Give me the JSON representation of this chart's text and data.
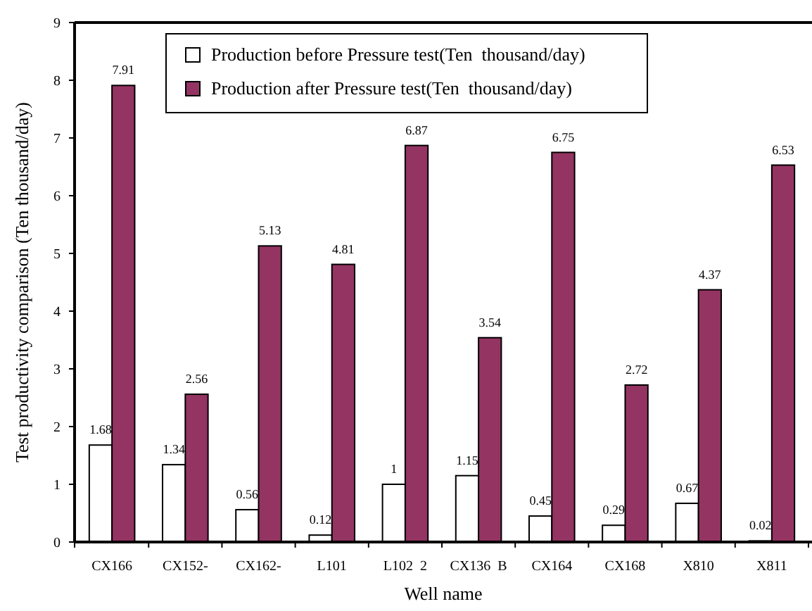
{
  "chart_data": {
    "type": "bar",
    "xlabel": "Well name",
    "ylabel": "Test productivity comparison (Ten thousand/day)",
    "categories": [
      "CX166",
      "CX152-",
      "CX162-",
      "L101",
      "L102  2",
      "CX136  B",
      "CX164",
      "CX168",
      "X810",
      "X811"
    ],
    "series": [
      {
        "name": "Production before Pressure test(Ten  thousand/day)",
        "color": "#ffffff",
        "values": [
          1.68,
          1.34,
          0.56,
          0.12,
          1,
          1.15,
          0.45,
          0.29,
          0.67,
          0.02
        ]
      },
      {
        "name": "Production after Pressure test(Ten  thousand/day)",
        "color": "#943462",
        "values": [
          7.91,
          2.56,
          5.13,
          4.81,
          6.87,
          3.54,
          6.75,
          2.72,
          4.37,
          6.53
        ]
      }
    ],
    "ylim": [
      0,
      9
    ],
    "yticks": [
      0,
      1,
      2,
      3,
      4,
      5,
      6,
      7,
      8,
      9
    ],
    "data_labels": true,
    "legend": "top",
    "grid": false
  }
}
